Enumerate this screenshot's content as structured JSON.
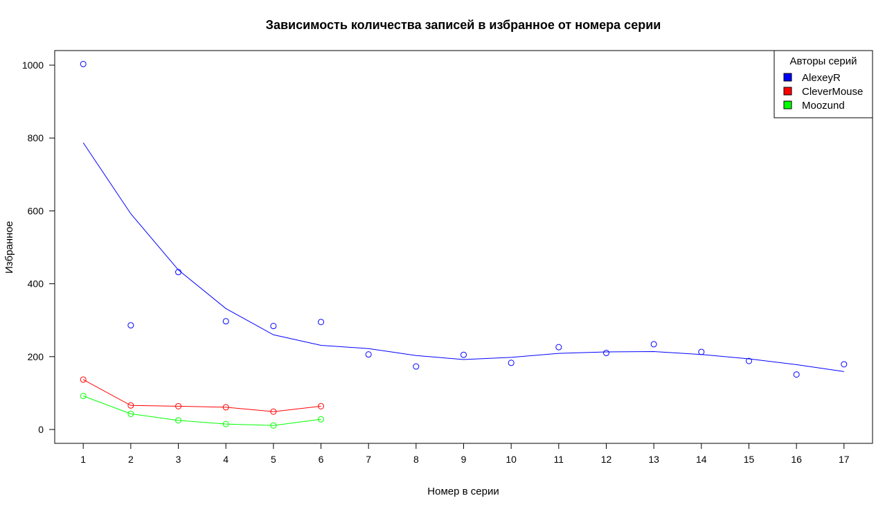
{
  "chart_data": {
    "type": "scatter",
    "title": "Зависимость количества записей в избранное от номера серии",
    "xlabel": "Номер в серии",
    "ylabel": "Избранное",
    "xlim": [
      0.4,
      17.6
    ],
    "ylim": [
      -38,
      1040
    ],
    "x_ticks": [
      1,
      2,
      3,
      4,
      5,
      6,
      7,
      8,
      9,
      10,
      11,
      12,
      13,
      14,
      15,
      16,
      17
    ],
    "y_ticks": [
      0,
      200,
      400,
      600,
      800,
      1000
    ],
    "grid": false,
    "legend": {
      "title": "Авторы серий",
      "position": "top-right"
    },
    "series": [
      {
        "name": "AlexeyR",
        "color": "#0000ff",
        "points": {
          "x": [
            1,
            2,
            3,
            4,
            5,
            6,
            7,
            8,
            9,
            10,
            11,
            12,
            13,
            14,
            15,
            16,
            17
          ],
          "y": [
            1003,
            286,
            432,
            297,
            284,
            295,
            206,
            173,
            205,
            183,
            226,
            210,
            234,
            213,
            188,
            151,
            179
          ]
        },
        "smooth_line": {
          "x": [
            1,
            2,
            3,
            4,
            5,
            6,
            7,
            8,
            9,
            10,
            11,
            12,
            13,
            14,
            15,
            16,
            17
          ],
          "y": [
            787,
            592,
            438,
            332,
            260,
            231,
            222,
            203,
            192,
            198,
            209,
            213,
            214,
            206,
            194,
            178,
            159
          ]
        }
      },
      {
        "name": "CleverMouse",
        "color": "#ff0000",
        "points": {
          "x": [
            1,
            2,
            3,
            4,
            5,
            6
          ],
          "y": [
            137,
            66,
            64,
            61,
            49,
            64
          ]
        },
        "smooth_line": {
          "x": [
            1,
            2,
            3,
            4,
            5,
            6
          ],
          "y": [
            137,
            66,
            64,
            61,
            49,
            64
          ]
        }
      },
      {
        "name": "Moozund",
        "color": "#00ff00",
        "points": {
          "x": [
            1,
            2,
            3,
            4,
            5,
            6
          ],
          "y": [
            92,
            43,
            25,
            15,
            11,
            28
          ]
        },
        "smooth_line": {
          "x": [
            1,
            2,
            3,
            4,
            5,
            6
          ],
          "y": [
            92,
            43,
            25,
            15,
            11,
            28
          ]
        }
      }
    ]
  }
}
